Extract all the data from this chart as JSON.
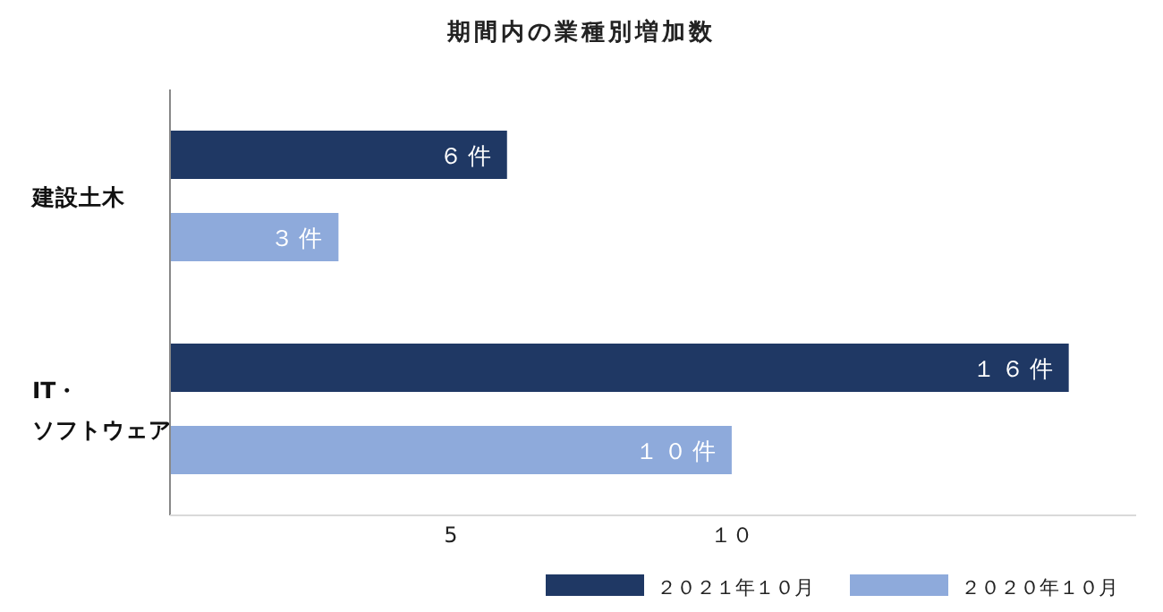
{
  "chart_data": {
    "type": "bar",
    "orientation": "horizontal",
    "title": "期間内の業種別増加数",
    "categories": [
      "建設土木",
      "IT・ソフトウェア"
    ],
    "series": [
      {
        "name": "２０２１年１０月",
        "color": "#1f3864",
        "values": [
          6,
          16
        ],
        "value_labels": [
          "６件",
          "１６件"
        ]
      },
      {
        "name": "２０２０年１０月",
        "color": "#8eaadb",
        "values": [
          3,
          10
        ],
        "value_labels": [
          "３件",
          "１０件"
        ]
      }
    ],
    "xlim": [
      0,
      17.2
    ],
    "xticks": [
      5,
      {
        "value": 10,
        "label": "１０"
      }
    ],
    "legend": "bottom"
  }
}
